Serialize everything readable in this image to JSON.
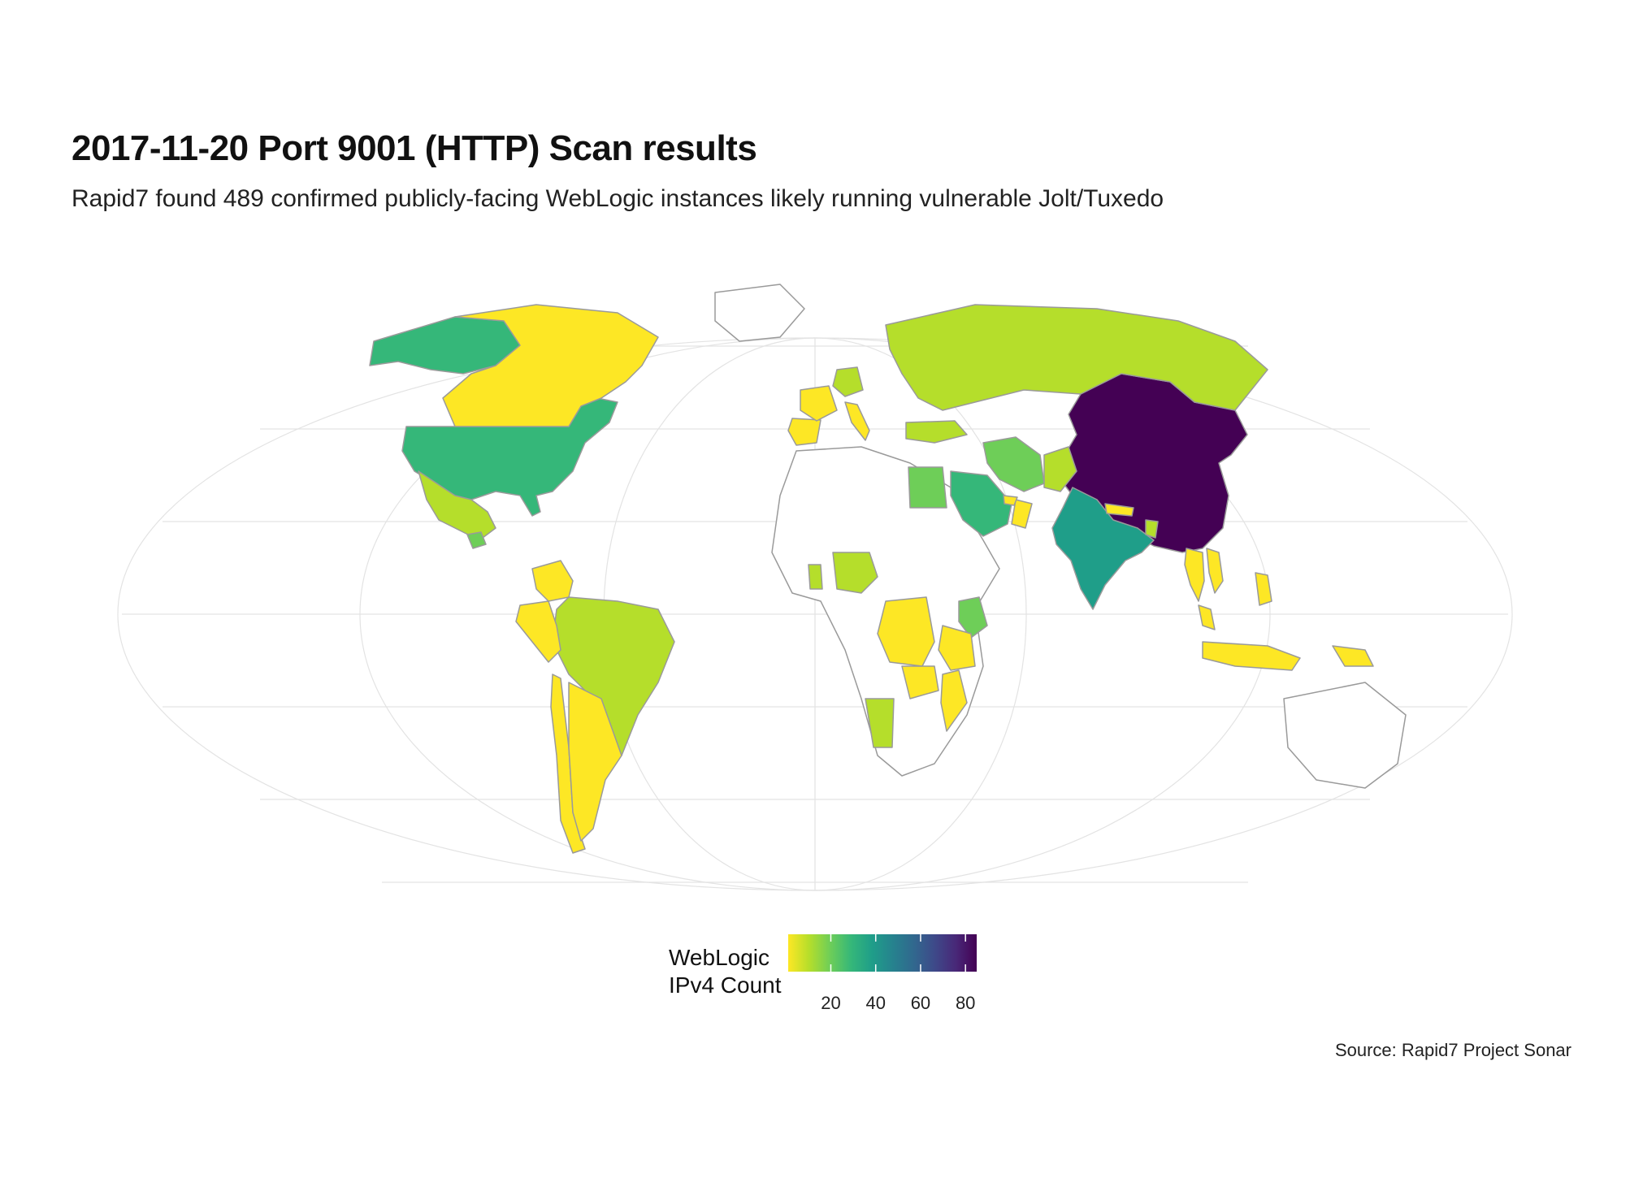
{
  "title": "2017-11-20 Port 9001 (HTTP) Scan results",
  "subtitle": "Rapid7 found 489 confirmed publicly-facing WebLogic instances likely running vulnerable Jolt/Tuxedo",
  "caption": "Source: Rapid7 Project Sonar",
  "legend": {
    "title_line1": "WebLogic",
    "title_line2": "IPv4 Count",
    "min": 1,
    "max": 85,
    "ticks": [
      {
        "value": 20,
        "label": "20"
      },
      {
        "value": 40,
        "label": "40"
      },
      {
        "value": 60,
        "label": "60"
      },
      {
        "value": 80,
        "label": "80"
      }
    ],
    "palette": [
      "#fde725",
      "#b5de2b",
      "#6ece58",
      "#35b779",
      "#1f9e89",
      "#26828e",
      "#31688e",
      "#3e4989",
      "#482878",
      "#440154"
    ]
  },
  "chart_data": {
    "type": "choropleth",
    "projection": "Robinson",
    "countries": [
      {
        "name": "China",
        "value": 85
      },
      {
        "name": "India",
        "value": 38
      },
      {
        "name": "United States",
        "value": 30
      },
      {
        "name": "Saudi Arabia",
        "value": 28
      },
      {
        "name": "Alaska (US)",
        "value": 30
      },
      {
        "name": "Egypt",
        "value": 22
      },
      {
        "name": "Iran",
        "value": 20
      },
      {
        "name": "Kenya",
        "value": 20
      },
      {
        "name": "Pakistan",
        "value": 14
      },
      {
        "name": "Mexico",
        "value": 14
      },
      {
        "name": "Nigeria",
        "value": 10
      },
      {
        "name": "Turkey",
        "value": 10
      },
      {
        "name": "Germany",
        "value": 8
      },
      {
        "name": "Russia",
        "value": 6
      },
      {
        "name": "Canada",
        "value": 4
      },
      {
        "name": "Brazil",
        "value": 6
      },
      {
        "name": "Colombia",
        "value": 5
      },
      {
        "name": "Peru",
        "value": 5
      },
      {
        "name": "Chile",
        "value": 3
      },
      {
        "name": "Argentina",
        "value": 5
      },
      {
        "name": "DR Congo",
        "value": 3
      },
      {
        "name": "Tanzania",
        "value": 5
      },
      {
        "name": "Zambia",
        "value": 5
      },
      {
        "name": "Mozambique",
        "value": 4
      },
      {
        "name": "Namibia",
        "value": 6
      },
      {
        "name": "Indonesia",
        "value": 3
      },
      {
        "name": "Thailand",
        "value": 4
      },
      {
        "name": "Vietnam",
        "value": 4
      },
      {
        "name": "Malaysia",
        "value": 3
      },
      {
        "name": "Philippines",
        "value": 4
      },
      {
        "name": "Oman",
        "value": 3
      },
      {
        "name": "UAE",
        "value": 4
      },
      {
        "name": "Spain",
        "value": 5
      },
      {
        "name": "France",
        "value": 4
      },
      {
        "name": "Italy",
        "value": 5
      },
      {
        "name": "Ghana",
        "value": 12
      },
      {
        "name": "Nepal",
        "value": 3
      },
      {
        "name": "Bangladesh",
        "value": 8
      },
      {
        "name": "Papua New Guinea",
        "value": 3
      },
      {
        "name": "Guatemala",
        "value": 22
      }
    ]
  }
}
